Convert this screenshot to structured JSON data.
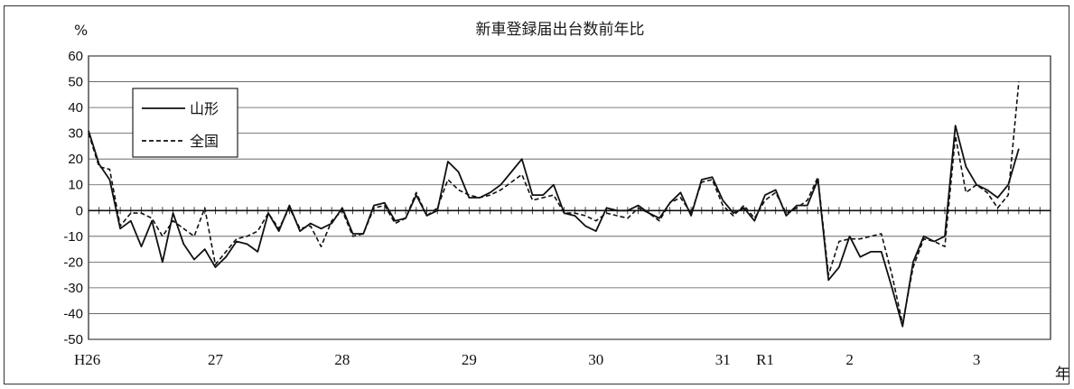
{
  "chart_data": {
    "type": "line",
    "title": "新車登録届出台数前年比",
    "ylabel": "%",
    "xlabel": "年",
    "ylim": [
      -50,
      60
    ],
    "yticks": [
      60,
      50,
      40,
      30,
      20,
      10,
      0,
      -10,
      -20,
      -30,
      -40,
      -50
    ],
    "grid": true,
    "legend_position": "top-left",
    "year_labels": [
      {
        "label": "H26",
        "month_index": 0
      },
      {
        "label": "27",
        "month_index": 12
      },
      {
        "label": "28",
        "month_index": 24
      },
      {
        "label": "29",
        "month_index": 36
      },
      {
        "label": "30",
        "month_index": 48
      },
      {
        "label": "31",
        "month_index": 60
      },
      {
        "label": "R1",
        "month_index": 64
      },
      {
        "label": "2",
        "month_index": 72
      },
      {
        "label": "3",
        "month_index": 84
      }
    ],
    "months": 92,
    "series": [
      {
        "name": "山形",
        "style": "solid",
        "values": [
          31,
          18,
          12,
          -7,
          -4,
          -14,
          -4,
          -20,
          -1,
          -13,
          -19,
          -15,
          -22,
          -18,
          -12,
          -13,
          -16,
          -1,
          -8,
          2,
          -8,
          -5,
          -7,
          -5,
          1,
          -9,
          -9,
          2,
          3,
          -4,
          -3,
          6,
          -2,
          0,
          19,
          15,
          5,
          5,
          7,
          10,
          15,
          20,
          6,
          6,
          10,
          -1,
          -2,
          -6,
          -8,
          1,
          0,
          0,
          2,
          -1,
          -3,
          3,
          7,
          -2,
          12,
          13,
          4,
          -1,
          1,
          -4,
          6,
          8,
          -2,
          2,
          2,
          12,
          -27,
          -22,
          -10,
          -18,
          -16,
          -16,
          -30,
          -45,
          -20,
          -10,
          -12,
          -10,
          33,
          17,
          10,
          8,
          5,
          10,
          24
        ],
        "color": "#111111"
      },
      {
        "name": "全国",
        "style": "dashed",
        "values": [
          30,
          17,
          16,
          -6,
          -1,
          -1,
          -3,
          -10,
          -4,
          -7,
          -10,
          1,
          -21,
          -16,
          -11,
          -10,
          -8,
          -1,
          -7,
          1,
          -7,
          -6,
          -14,
          -4,
          0,
          -10,
          -9,
          1,
          2,
          -5,
          -3,
          7,
          -2,
          1,
          12,
          8,
          6,
          5,
          6,
          8,
          11,
          14,
          4,
          5,
          6,
          -1,
          -1,
          -2,
          -4,
          -1,
          -2,
          -3,
          1,
          -1,
          -4,
          3,
          5,
          -1,
          11,
          12,
          2,
          -2,
          2,
          -3,
          4,
          7,
          -1,
          1,
          4,
          13,
          -25,
          -12,
          -11,
          -11,
          -10,
          -9,
          -25,
          -44,
          -22,
          -11,
          -12,
          -14,
          29,
          7,
          10,
          7,
          1,
          6,
          50
        ],
        "color": "#111111"
      }
    ]
  }
}
